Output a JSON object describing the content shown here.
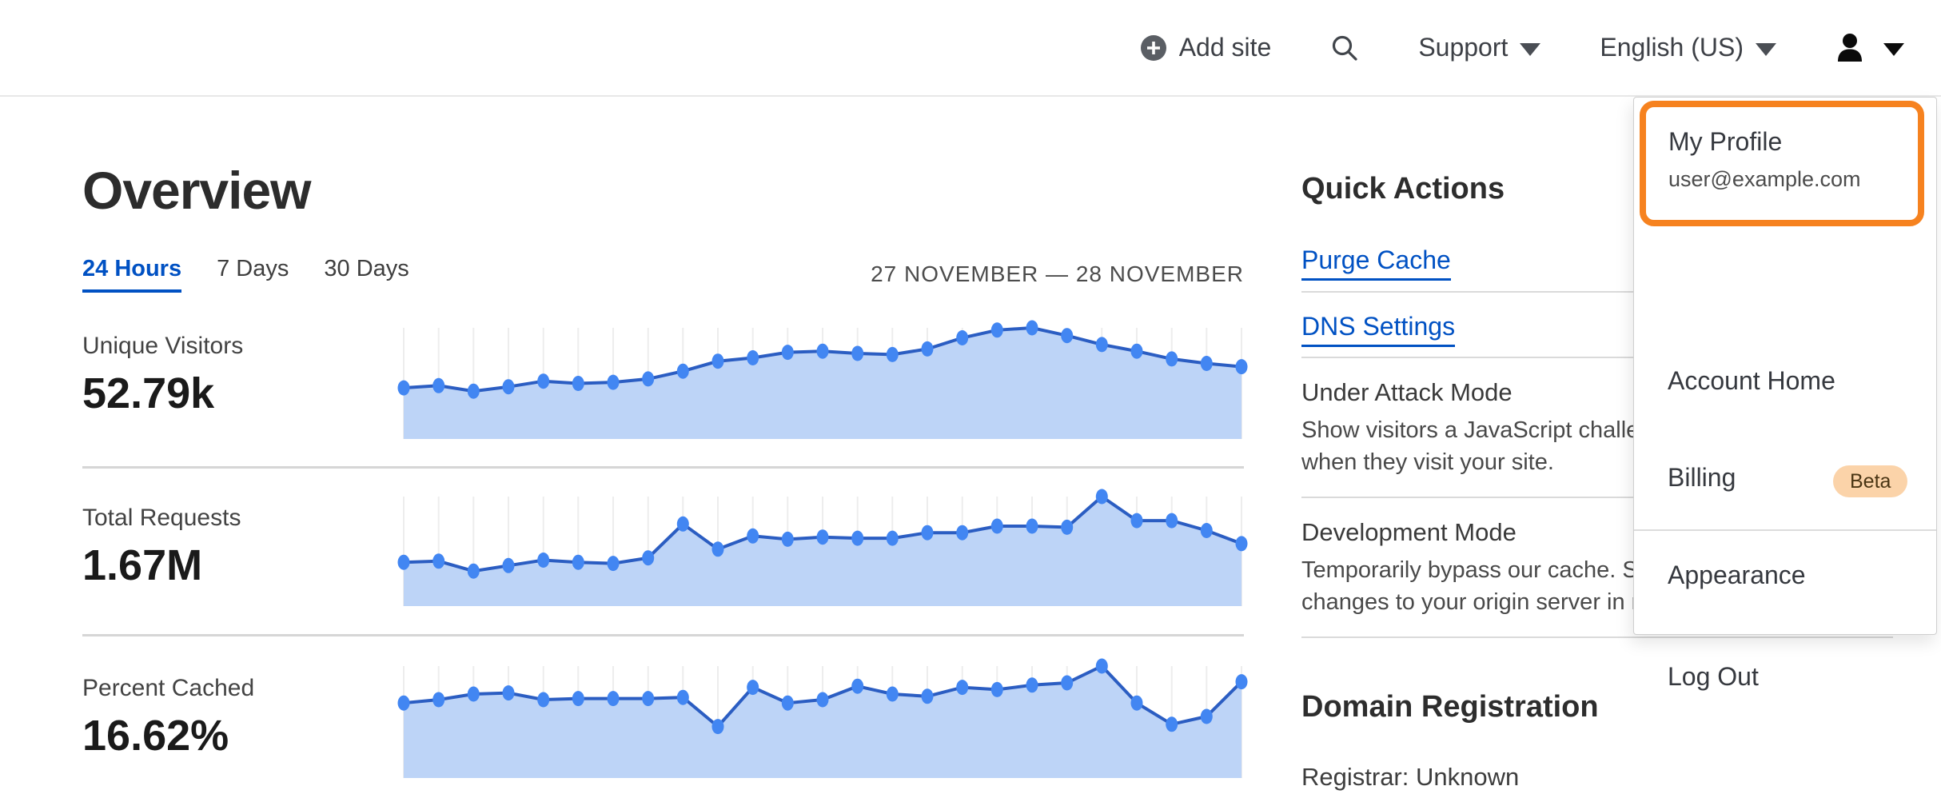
{
  "header": {
    "add_site_label": "Add site",
    "support_label": "Support",
    "language_label": "English (US)"
  },
  "overview": {
    "title": "Overview",
    "tabs": [
      {
        "label": "24 Hours",
        "active": true
      },
      {
        "label": "7 Days",
        "active": false
      },
      {
        "label": "30 Days",
        "active": false
      }
    ],
    "date_range": "27 NOVEMBER — 28 NOVEMBER",
    "metrics": [
      {
        "label": "Unique Visitors",
        "value": "52.79k"
      },
      {
        "label": "Total Requests",
        "value": "1.67M"
      },
      {
        "label": "Percent Cached",
        "value": "16.62%"
      }
    ]
  },
  "quick_actions": {
    "title": "Quick Actions",
    "links": [
      {
        "label": "Purge Cache"
      },
      {
        "label": "DNS Settings"
      }
    ],
    "modes": [
      {
        "title": "Under Attack Mode",
        "desc_line1": "Show visitors a JavaScript challenge",
        "desc_line2": "when they visit your site."
      },
      {
        "title": "Development Mode",
        "desc_line1": "Temporarily bypass our cache. See",
        "desc_line2": "changes to your origin server in realtime."
      }
    ]
  },
  "domain_registration": {
    "title": "Domain Registration",
    "registrar": "Registrar: Unknown"
  },
  "account_menu": {
    "profile": {
      "title": "My Profile",
      "email": "user@example.com"
    },
    "items": [
      {
        "label": "Account Home"
      },
      {
        "label": "Billing"
      },
      {
        "label": "Appearance"
      },
      {
        "label": "Log Out"
      }
    ],
    "beta_badge": "Beta"
  },
  "colors": {
    "accent_orange": "#f6821f",
    "link_blue": "#0051c3",
    "chart_dot": "#4286f2",
    "chart_line": "#2b5dc2",
    "chart_fill": "#bdd4f7",
    "chart_grid": "#ededed",
    "beta_badge_bg": "#fbd3a9"
  },
  "chart_data": [
    {
      "type": "area",
      "title": "Unique Visitors",
      "total": "52.79k",
      "x_axis": "27 November — 28 November (hourly intervals)",
      "ylabel": "visitors (% of chart max, no axis shown)",
      "ylim_pct": [
        0,
        100
      ],
      "grid": "vertical-only",
      "legend": "none",
      "values_pct": [
        46,
        48,
        43,
        47,
        52,
        50,
        51,
        54,
        61,
        70,
        73,
        78,
        79,
        77,
        76,
        81,
        91,
        98,
        100,
        93,
        85,
        79,
        72,
        68,
        65
      ]
    },
    {
      "type": "area",
      "title": "Total Requests",
      "total": "1.67M",
      "x_axis": "27 November — 28 November (hourly intervals)",
      "ylabel": "requests (% of chart max, no axis shown)",
      "ylim_pct": [
        0,
        100
      ],
      "grid": "vertical-only",
      "legend": "none",
      "values_pct": [
        40,
        41,
        32,
        37,
        42,
        40,
        39,
        44,
        75,
        52,
        64,
        61,
        63,
        62,
        62,
        67,
        67,
        73,
        73,
        72,
        100,
        78,
        78,
        69,
        57
      ]
    },
    {
      "type": "area",
      "title": "Percent Cached",
      "total": "16.62%",
      "x_axis": "27 November — 28 November (hourly intervals)",
      "ylabel": "percent cached (% of chart max, no axis shown)",
      "ylim_pct": [
        0,
        100
      ],
      "grid": "vertical-only",
      "legend": "none",
      "values_pct": [
        67,
        70,
        75,
        76,
        70,
        71,
        71,
        71,
        72,
        46,
        81,
        67,
        70,
        82,
        75,
        73,
        81,
        79,
        83,
        85,
        100,
        67,
        48,
        55,
        86
      ]
    }
  ]
}
